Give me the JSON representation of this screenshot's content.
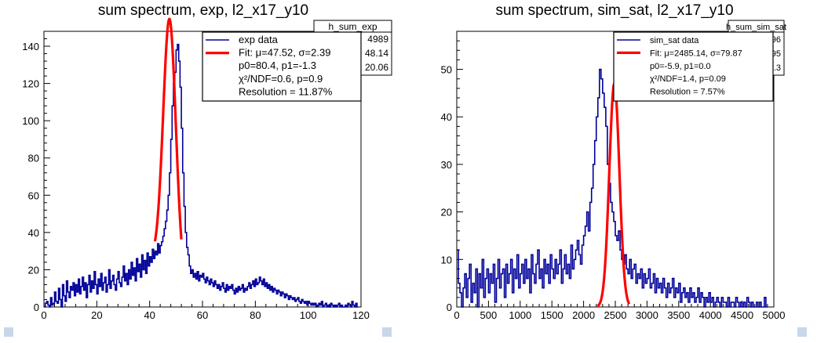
{
  "chart_data": [
    {
      "type": "step-histogram",
      "title": "sum spectrum, exp, l2_x17_y10",
      "stats": {
        "name": "h_sum_exp",
        "values": [
          "4989",
          "48.14",
          "20.06"
        ]
      },
      "legend": [
        {
          "label": "exp data",
          "color": "#000099"
        },
        {
          "label": "Fit: μ=47.52, σ=2.39",
          "color": "#ff0000"
        },
        {
          "label": "p0=80.4, p1=-1.3"
        },
        {
          "label": "χ²/NDF=0.6, p=0.9"
        },
        {
          "label": "Resolution = 11.87%"
        }
      ],
      "xlim": [
        0,
        120
      ],
      "ylim": [
        0,
        148
      ],
      "xticks": [
        0,
        20,
        40,
        60,
        80,
        100,
        120
      ],
      "yticks": [
        0,
        20,
        40,
        60,
        80,
        100,
        120,
        140
      ],
      "hist": {
        "bin_width": 0.5,
        "counts": [
          0,
          2,
          3,
          1,
          0,
          5,
          1,
          2,
          8,
          3,
          2,
          10,
          4,
          0,
          12,
          6,
          3,
          14,
          8,
          5,
          11,
          9,
          13,
          6,
          12,
          8,
          15,
          7,
          11,
          16,
          9,
          13,
          5,
          12,
          17,
          8,
          14,
          10,
          19,
          12,
          7,
          15,
          11,
          18,
          9,
          13,
          16,
          8,
          12,
          20,
          10,
          14,
          17,
          12,
          9,
          15,
          19,
          13,
          11,
          16,
          22,
          14,
          18,
          12,
          20,
          15,
          24,
          17,
          21,
          14,
          26,
          19,
          23,
          16,
          28,
          20,
          25,
          18,
          29,
          22,
          27,
          24,
          31,
          26,
          30,
          28,
          34,
          29,
          33,
          35,
          38,
          42,
          46,
          52,
          60,
          72,
          90,
          108,
          120,
          126,
          138,
          141,
          132,
          118,
          96,
          72,
          54,
          40,
          32,
          28,
          22,
          18,
          20,
          16,
          18,
          15,
          19,
          14,
          17,
          16,
          18,
          15,
          13,
          16,
          14,
          12,
          15,
          13,
          11,
          14,
          12,
          10,
          12,
          9,
          11,
          13,
          10,
          8,
          12,
          9,
          11,
          10,
          12,
          9,
          7,
          10,
          8,
          11,
          9,
          10,
          12,
          8,
          10,
          9,
          11,
          13,
          10,
          12,
          14,
          11,
          15,
          12,
          13,
          16,
          14,
          12,
          15,
          11,
          13,
          10,
          12,
          9,
          11,
          8,
          10,
          9,
          7,
          9,
          8,
          6,
          8,
          7,
          5,
          7,
          6,
          4,
          6,
          5,
          4,
          5,
          3,
          4,
          5,
          3,
          2,
          4,
          3,
          2,
          3,
          1,
          3,
          2,
          1,
          2,
          1,
          2,
          0,
          1,
          2,
          1,
          3,
          0,
          1,
          2,
          0,
          1,
          0,
          2,
          1,
          0,
          1,
          0,
          1,
          2,
          0,
          1,
          0,
          0,
          1,
          0,
          2,
          1,
          0,
          3,
          1,
          0,
          2,
          0
        ]
      },
      "fit": {
        "mu": 47.52,
        "sigma": 2.39,
        "amp": 136,
        "p0": 80.4,
        "p1": -1.3,
        "range": [
          42,
          52
        ]
      }
    },
    {
      "type": "step-histogram",
      "title": "sum spectrum, sim_sat, l2_x17_y10",
      "stats": {
        "name": "h_sum_sim_sat",
        "values": [
          "1896",
          "2095",
          "966.3"
        ]
      },
      "legend": [
        {
          "label": "sim_sat data",
          "color": "#000099"
        },
        {
          "label": "Fit: μ=2485.14, σ=79.87",
          "color": "#ff0000"
        },
        {
          "label": "p0=-5.9, p1=0.0"
        },
        {
          "label": "χ²/NDF=1.4, p=0.09"
        },
        {
          "label": "Resolution = 7.57%"
        }
      ],
      "xlim": [
        0,
        5000
      ],
      "ylim": [
        0,
        58
      ],
      "xticks": [
        0,
        500,
        1000,
        1500,
        2000,
        2500,
        3000,
        3500,
        4000,
        4500,
        5000
      ],
      "yticks": [
        0,
        10,
        20,
        30,
        40,
        50
      ],
      "hist": {
        "bin_width": 25,
        "counts": [
          12,
          5,
          3,
          0,
          4,
          7,
          2,
          6,
          9,
          1,
          5,
          3,
          8,
          0,
          7,
          4,
          10,
          2,
          6,
          8,
          3,
          7,
          5,
          9,
          1,
          6,
          10,
          4,
          7,
          8,
          2,
          9,
          5,
          7,
          10,
          3,
          8,
          6,
          11,
          4,
          7,
          9,
          5,
          10,
          6,
          8,
          3,
          11,
          7,
          5,
          9,
          12,
          6,
          8,
          4,
          10,
          7,
          9,
          5,
          11,
          8,
          6,
          10,
          7,
          9,
          12,
          5,
          8,
          11,
          7,
          9,
          6,
          13,
          8,
          10,
          12,
          14,
          11,
          9,
          13,
          15,
          17,
          20,
          16,
          22,
          25,
          30,
          35,
          40,
          44,
          50,
          48,
          45,
          42,
          38,
          30,
          26,
          22,
          20,
          18,
          15,
          14,
          16,
          12,
          10,
          9,
          11,
          8,
          7,
          10,
          6,
          8,
          9,
          5,
          7,
          6,
          8,
          4,
          7,
          5,
          6,
          8,
          4,
          5,
          7,
          3,
          6,
          4,
          5,
          3,
          6,
          4,
          2,
          5,
          3,
          4,
          6,
          2,
          4,
          3,
          5,
          1,
          3,
          4,
          2,
          3,
          1,
          4,
          2,
          3,
          1,
          2,
          4,
          1,
          3,
          2,
          0,
          2,
          1,
          3,
          1,
          2,
          0,
          1,
          2,
          1,
          0,
          2,
          1,
          1,
          0,
          2,
          0,
          1,
          1,
          0,
          2,
          1,
          0,
          1,
          0,
          1,
          0,
          2,
          1,
          0,
          1,
          0,
          0,
          1,
          0,
          1,
          0,
          0,
          2,
          0
        ]
      },
      "fit": {
        "mu": 2485.14,
        "sigma": 79.87,
        "amp": 47,
        "p0": -5.9,
        "p1": 0.0,
        "range": [
          2220,
          2720
        ]
      }
    }
  ]
}
